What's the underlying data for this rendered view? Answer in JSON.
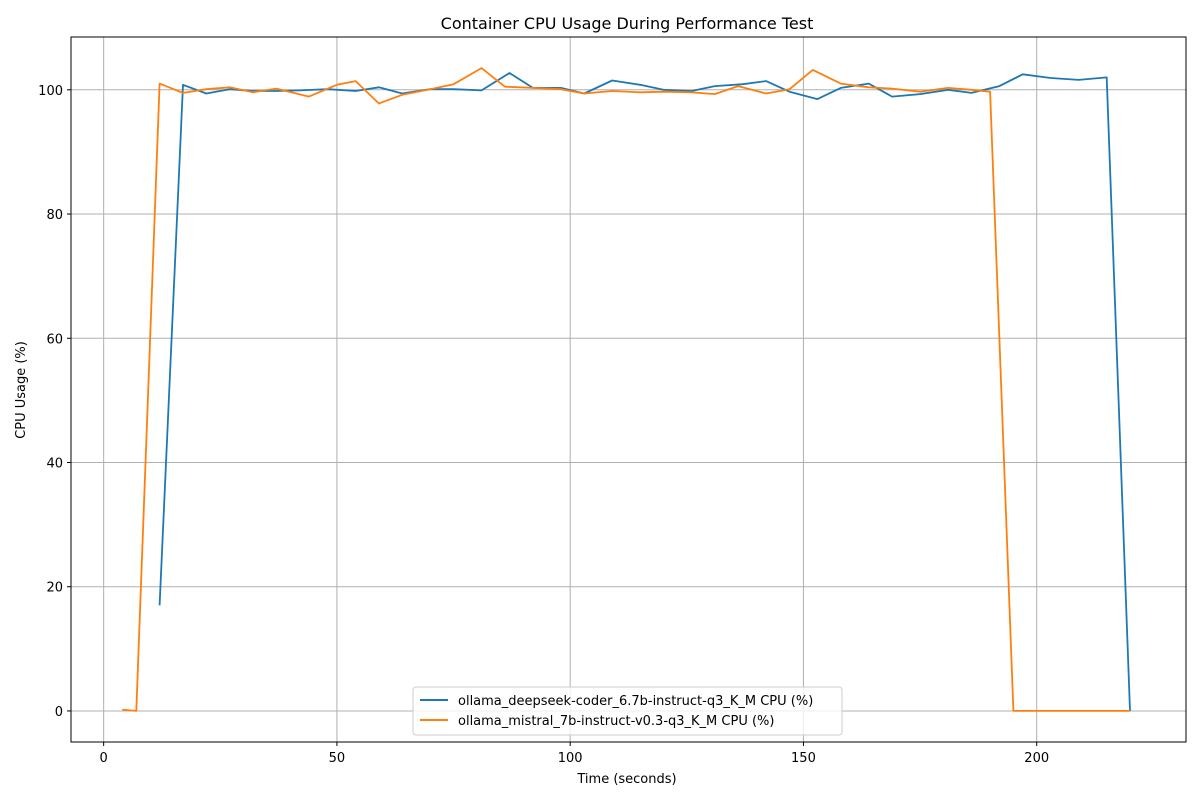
{
  "chart_data": {
    "type": "line",
    "title": "Container CPU Usage During Performance Test",
    "xlabel": "Time (seconds)",
    "ylabel": "CPU Usage (%)",
    "xlim": [
      -7,
      232
    ],
    "ylim": [
      -5,
      108.5
    ],
    "xticks": [
      0,
      50,
      100,
      150,
      200
    ],
    "yticks": [
      0,
      20,
      40,
      60,
      80,
      100
    ],
    "grid": true,
    "legend_position": "bottom-center",
    "series": [
      {
        "name": "ollama_deepseek-coder_6.7b-instruct-q3_K_M CPU (%)",
        "color": "#1f77b4",
        "x": [
          12,
          17,
          22,
          27,
          32,
          37,
          42,
          48,
          54,
          59,
          64,
          70,
          75,
          81,
          87,
          92,
          98,
          103,
          109,
          115,
          120,
          126,
          131,
          137,
          142,
          147,
          153,
          158,
          164,
          169,
          175,
          181,
          186,
          192,
          197,
          203,
          209,
          215,
          220
        ],
        "y": [
          17,
          100.8,
          99.4,
          100.1,
          99.8,
          99.8,
          99.9,
          100.1,
          99.8,
          100.4,
          99.4,
          100.1,
          100.1,
          99.9,
          102.7,
          100.3,
          100.3,
          99.4,
          101.5,
          100.8,
          100.0,
          99.8,
          100.6,
          100.9,
          101.4,
          99.7,
          98.5,
          100.3,
          101.0,
          98.9,
          99.3,
          100.0,
          99.5,
          100.6,
          102.5,
          101.9,
          101.6,
          102.0,
          0
        ]
      },
      {
        "name": "ollama_mistral_7b-instruct-v0.3-q3_K_M CPU (%)",
        "color": "#ff7f0e",
        "x": [
          4,
          7,
          12,
          17,
          22,
          27,
          32,
          37,
          44,
          50,
          54,
          59,
          64,
          70,
          75,
          81,
          86,
          92,
          98,
          103,
          109,
          115,
          120,
          126,
          131,
          136,
          142,
          147,
          152,
          158,
          164,
          169,
          175,
          181,
          186,
          190,
          195,
          200,
          205,
          210,
          215,
          220
        ],
        "y": [
          0.2,
          0,
          101,
          99.5,
          100.1,
          100.4,
          99.6,
          100.2,
          98.9,
          100.8,
          101.4,
          97.8,
          99.2,
          100.1,
          100.9,
          103.5,
          100.5,
          100.3,
          100.1,
          99.4,
          99.8,
          99.6,
          99.7,
          99.6,
          99.3,
          100.6,
          99.4,
          100.1,
          103.2,
          101.0,
          100.4,
          100.2,
          99.7,
          100.3,
          100.0,
          99.7,
          0,
          0,
          0,
          0,
          0,
          0
        ]
      }
    ]
  }
}
